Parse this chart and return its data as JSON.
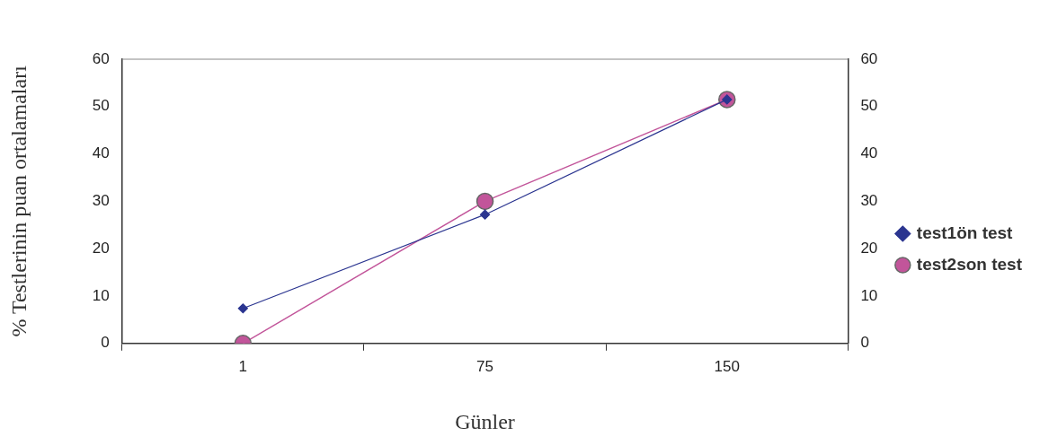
{
  "chart_data": {
    "type": "line",
    "xlabel": "Günler",
    "ylabel": "% Testlerinin puan ortalamaları",
    "categories": [
      "1",
      "75",
      "150"
    ],
    "series": [
      {
        "name": "test1ön test",
        "color": "#2b3590",
        "marker": "diamond",
        "values": [
          7.4,
          27.2,
          51.5
        ]
      },
      {
        "name": "test2son test",
        "color": "#c2559a",
        "marker": "circle",
        "values": [
          0,
          30,
          51.5
        ]
      }
    ],
    "ylim": [
      0,
      60
    ],
    "yticks": [
      0,
      10,
      20,
      30,
      40,
      50,
      60
    ],
    "y2lim": [
      0,
      60
    ],
    "y2ticks": [
      0,
      10,
      20,
      30,
      40,
      50,
      60
    ],
    "legend": "right"
  }
}
